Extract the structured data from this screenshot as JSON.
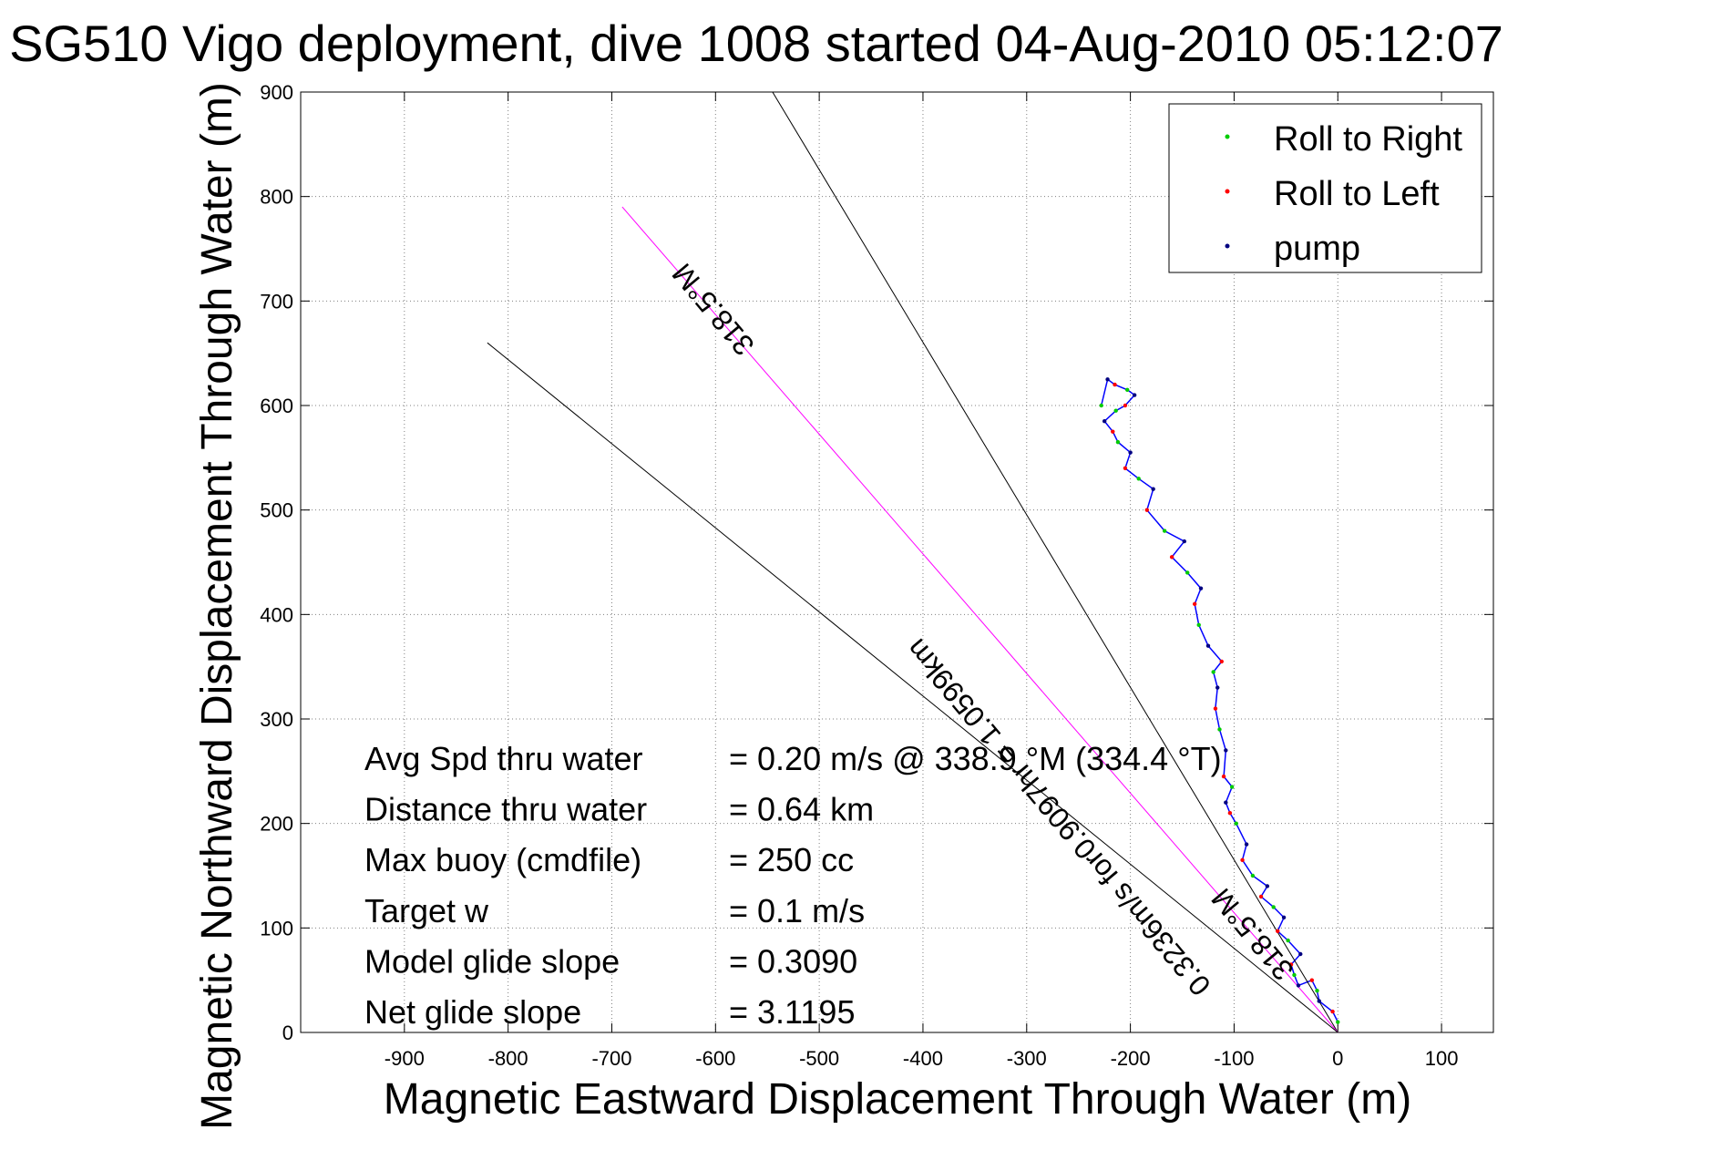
{
  "chart_data": {
    "type": "line",
    "title": "SG510 Vigo deployment, dive 1008 started 04-Aug-2010 05:12:07",
    "xlabel": "Magnetic Eastward Displacement Through Water (m)",
    "ylabel": "Magnetic Northward Displacement Through Water (m)",
    "xlim": [
      -1000,
      150
    ],
    "ylim": [
      0,
      900
    ],
    "xticks": [
      -900,
      -800,
      -700,
      -600,
      -500,
      -400,
      -300,
      -200,
      -100,
      0,
      100
    ],
    "yticks": [
      0,
      100,
      200,
      300,
      400,
      500,
      600,
      700,
      800,
      900
    ],
    "grid": true,
    "legend_position": "top-right",
    "legend": [
      {
        "label": "Roll to Right",
        "color": "#00cc00"
      },
      {
        "label": "Roll to Left",
        "color": "#ff0000"
      },
      {
        "label": "pump",
        "color": "#000080"
      }
    ],
    "series": [
      {
        "name": "",
        "color": "#0000ff",
        "x": [
          0,
          -5,
          -18,
          -20,
          -25,
          -38,
          -42,
          -45,
          -36,
          -48,
          -58,
          -52,
          -62,
          -74,
          -68,
          -82,
          -92,
          -88,
          -98,
          -104,
          -108,
          -102,
          -110,
          -108,
          -114,
          -118,
          -116,
          -120,
          -112,
          -125,
          -134,
          -138,
          -132,
          -145,
          -160,
          -148,
          -167,
          -184,
          -178,
          -192,
          -205,
          -200,
          -212,
          -217,
          -225,
          -214,
          -205,
          -196,
          -203,
          -215,
          -222,
          -228
        ],
        "y": [
          10,
          20,
          30,
          40,
          50,
          45,
          55,
          65,
          75,
          88,
          97,
          110,
          120,
          130,
          140,
          150,
          165,
          180,
          200,
          210,
          220,
          235,
          245,
          270,
          290,
          310,
          330,
          345,
          355,
          370,
          390,
          410,
          425,
          440,
          455,
          470,
          480,
          500,
          520,
          530,
          540,
          555,
          565,
          575,
          585,
          595,
          600,
          610,
          615,
          620,
          625,
          600
        ]
      },
      {
        "name": "",
        "color": "#000000",
        "x": [
          0,
          -545
        ],
        "y": [
          0,
          900
        ]
      },
      {
        "name": "",
        "color": "#ff00ff",
        "x": [
          0,
          -690
        ],
        "y": [
          0,
          790
        ]
      },
      {
        "name": "",
        "color": "#000000",
        "x": [
          0,
          -820
        ],
        "y": [
          0,
          660
        ]
      }
    ],
    "annotations": [
      {
        "text": "318.5°M",
        "x": -595,
        "y": 698,
        "rotation": 230
      },
      {
        "text": "0.3236m/s for0.9097hr = 1.0599km",
        "x": -262,
        "y": 212,
        "rotation": 230
      },
      {
        "text": "318.5°M",
        "x": -75,
        "y": 100,
        "rotation": 230
      }
    ],
    "stats": [
      {
        "label": "Avg Spd thru water",
        "value": "=  0.20 m/s @ 338.9 °M (334.4 °T)"
      },
      {
        "label": "Distance thru water",
        "value": "=  0.64 km"
      },
      {
        "label": "Max buoy (cmdfile)",
        "value": "= 250 cc"
      },
      {
        "label": "Target w",
        "value": "= 0.1 m/s"
      },
      {
        "label": "Model glide slope",
        "value": "= 0.3090"
      },
      {
        "label": "Net glide slope",
        "value": "= 3.1195"
      }
    ]
  }
}
